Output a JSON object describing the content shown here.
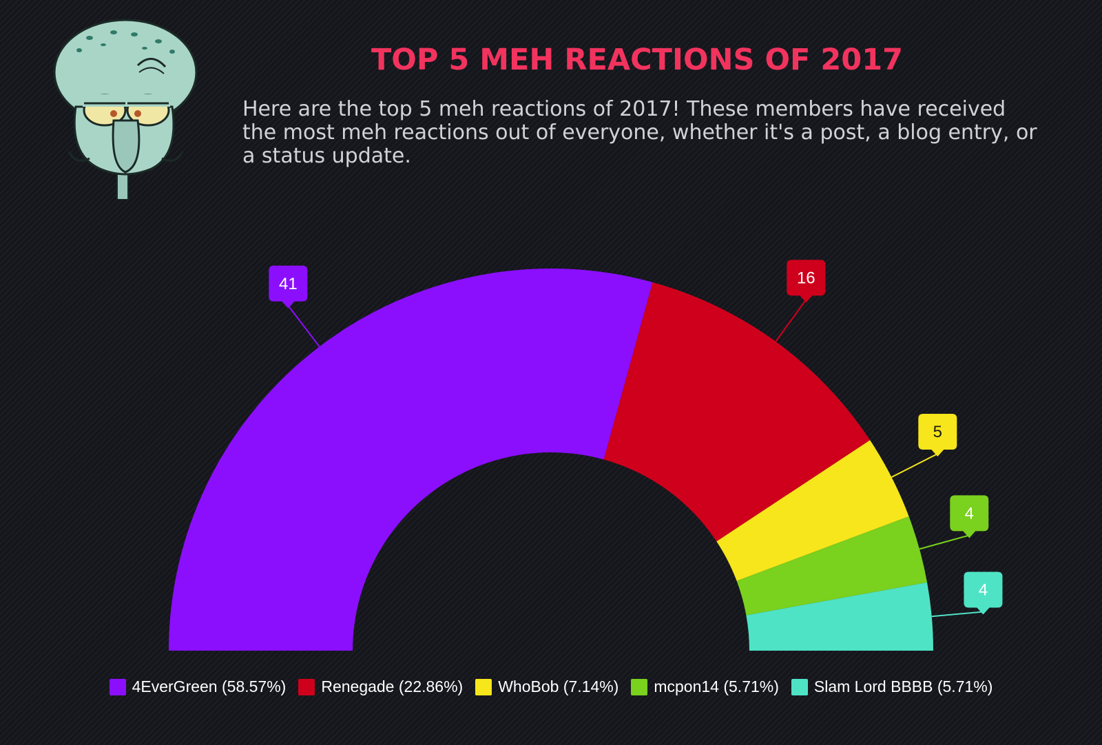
{
  "header": {
    "title": "TOP 5 MEH REACTIONS OF 2017",
    "description": "Here are the top 5 meh reactions of 2017! These members have received the most meh reactions out of everyone, whether it's a post, a blog entry, or a status update."
  },
  "mascot": {
    "icon": "squidward-face-icon"
  },
  "colors": {
    "title": "#f2335e",
    "text": "#d2d2d6",
    "background": "#15161c"
  },
  "chart_data": {
    "type": "pie",
    "variant": "semicircle-donut",
    "categories": [
      "4EverGreen",
      "Renegade",
      "WhoBob",
      "mcpon14",
      "Slam Lord BBBB"
    ],
    "values": [
      41,
      16,
      5,
      4,
      4
    ],
    "legend_labels": [
      "4EverGreen (58.57%)",
      "Renegade (22.86%)",
      "WhoBob (7.14%)",
      "mcpon14 (5.71%)",
      "Slam Lord BBBB (5.71%)"
    ],
    "value_labels": [
      "41",
      "16",
      "5",
      "4",
      "4"
    ],
    "colors": [
      "#8b0ffc",
      "#cf001c",
      "#f6e61b",
      "#7ad11e",
      "#4fe3c5"
    ],
    "label_text_colors": [
      "#ffffff",
      "#ffffff",
      "#1a1a1a",
      "#ffffff",
      "#ffffff"
    ],
    "legend_position": "bottom"
  }
}
